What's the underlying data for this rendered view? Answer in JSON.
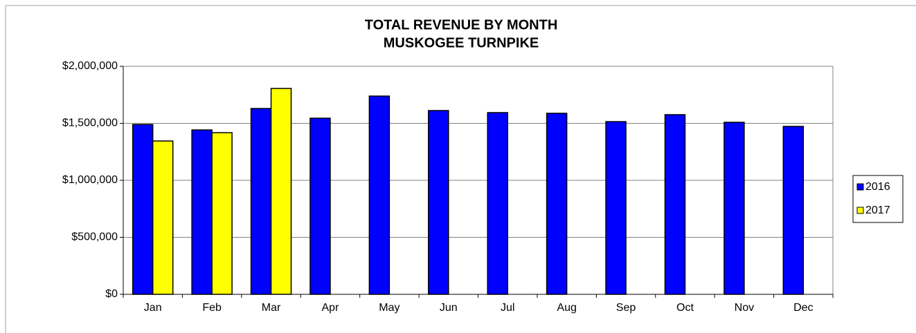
{
  "chart_data": {
    "type": "bar",
    "title": "TOTAL REVENUE BY MONTH",
    "subtitle": "MUSKOGEE TURNPIKE",
    "categories": [
      "Jan",
      "Feb",
      "Mar",
      "Apr",
      "May",
      "Jun",
      "Jul",
      "Aug",
      "Sep",
      "Oct",
      "Nov",
      "Dec"
    ],
    "series": [
      {
        "name": "2016",
        "color": "#0000ff",
        "values": [
          1490000,
          1442000,
          1630000,
          1545000,
          1739000,
          1612000,
          1594000,
          1588000,
          1515000,
          1576000,
          1509000,
          1473000
        ]
      },
      {
        "name": "2017",
        "color": "#ffff00",
        "values": [
          1345000,
          1418000,
          1806000,
          null,
          null,
          null,
          null,
          null,
          null,
          null,
          null,
          null
        ]
      }
    ],
    "ylim": [
      0,
      2000000
    ],
    "yticks": [
      {
        "value": 0,
        "label": "$0"
      },
      {
        "value": 500000,
        "label": "$500,000"
      },
      {
        "value": 1000000,
        "label": "$1,000,000"
      },
      {
        "value": 1500000,
        "label": "$1,500,000"
      },
      {
        "value": 2000000,
        "label": "$2,000,000"
      }
    ],
    "grid": true,
    "legend": "right"
  }
}
